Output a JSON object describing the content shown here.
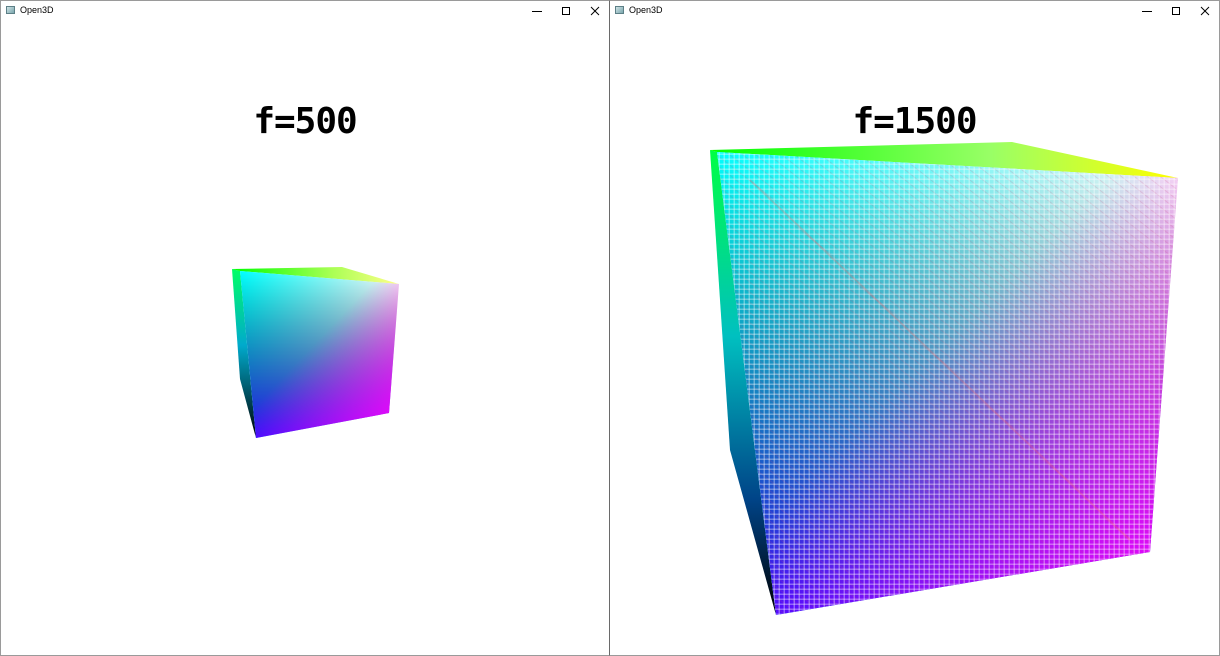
{
  "windows": [
    {
      "id": "left",
      "title": "Open3D",
      "label": "f=500",
      "focal_length": 500
    },
    {
      "id": "right",
      "title": "Open3D",
      "label": "f=1500",
      "focal_length": 1500
    }
  ],
  "icons": {
    "app": "open3d-app-icon",
    "minimize": "minimize-icon",
    "maximize": "maximize-icon",
    "close": "close-icon"
  },
  "colors": {
    "cube_front_top_left": "#00ffff",
    "cube_front_top_right": "#ffffff",
    "cube_front_bottom_left": "#0000ff",
    "cube_front_bottom_right": "#ff00ff",
    "cube_back_top_left": "#00ff00",
    "cube_back_top_right": "#ffff00",
    "cube_back_bottom_left": "#000000"
  }
}
